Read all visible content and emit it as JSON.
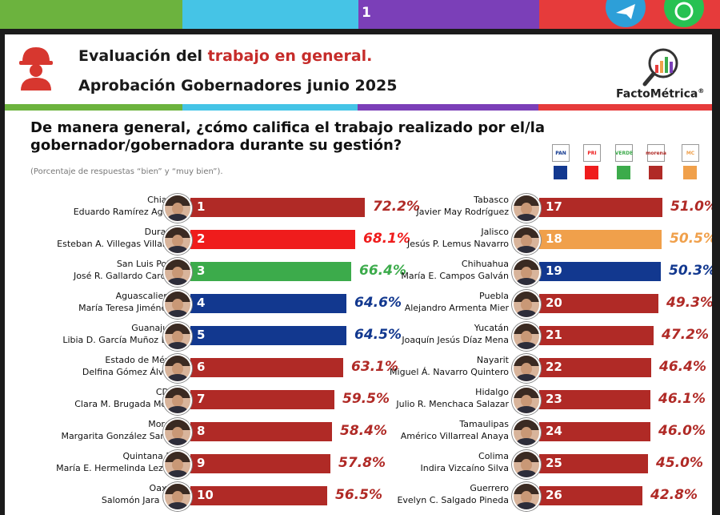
{
  "page_number": "1",
  "header": {
    "title_prefix": "Evaluación del ",
    "title_highlight": "trabajo en general.",
    "subtitle": "Aprobación Gobernadores junio 2025",
    "brand": "FactoMétrica",
    "brand_mark": "®"
  },
  "question": "De manera general, ¿cómo califica el trabajo realizado por el/la gobernador/gobernadora durante su gestión?",
  "note": "(Porcentaje de respuestas “bien” y “muy bien”).",
  "colors": {
    "pan": "#12388f",
    "pri": "#ef1c1c",
    "verde": "#3cab4b",
    "morena": "#b02a26",
    "mc": "#f0a04b"
  },
  "parties": [
    {
      "icon": "pan-logo-icon",
      "label": "PAN",
      "color": "#12388f"
    },
    {
      "icon": "pri-logo-icon",
      "label": "PRI",
      "color": "#ef1c1c"
    },
    {
      "icon": "verde-logo-icon",
      "label": "VERDE",
      "color": "#3cab4b"
    },
    {
      "icon": "morena-logo-icon",
      "label": "morena",
      "color": "#b02a26"
    },
    {
      "icon": "mc-logo-icon",
      "label": "MC",
      "color": "#f0a04b"
    }
  ],
  "chart_data": {
    "type": "bar",
    "unit": "%",
    "xlim": [
      0,
      100
    ],
    "series": [
      {
        "rank": "1",
        "state": "Chiapas",
        "governor": "Eduardo Ramírez Aguilar",
        "value": 72.2,
        "label": "72.2%",
        "party": "morena"
      },
      {
        "rank": "2",
        "state": "Durango",
        "governor": "Esteban A. Villegas Villarreal",
        "value": 68.1,
        "label": "68.1%",
        "party": "pri"
      },
      {
        "rank": "3",
        "state": "San Luis Potosí",
        "governor": "José R. Gallardo Cardona",
        "value": 66.4,
        "label": "66.4%",
        "party": "verde"
      },
      {
        "rank": "4",
        "state": "Aguascalientes",
        "governor": "María Teresa Jiménez E.",
        "value": 64.6,
        "label": "64.6%",
        "party": "pan"
      },
      {
        "rank": "5",
        "state": "Guanajuato",
        "governor": "Libia D. García Muñoz Ledo",
        "value": 64.5,
        "label": "64.5%",
        "party": "pan"
      },
      {
        "rank": "6",
        "state": "Estado de México",
        "governor": "Delfina Gómez Álvarez",
        "value": 63.1,
        "label": "63.1%",
        "party": "morena"
      },
      {
        "rank": "7",
        "state": "CDMX",
        "governor": "Clara M. Brugada Molina",
        "value": 59.5,
        "label": "59.5%",
        "party": "morena"
      },
      {
        "rank": "8",
        "state": "Morelos",
        "governor": "Margarita González Saravia",
        "value": 58.4,
        "label": "58.4%",
        "party": "morena"
      },
      {
        "rank": "9",
        "state": "Quintana Roo",
        "governor": "María E. Hermelinda Lezama",
        "value": 57.8,
        "label": "57.8%",
        "party": "morena"
      },
      {
        "rank": "10",
        "state": "Oaxaca",
        "governor": "Salomón Jara Cruz",
        "value": 56.5,
        "label": "56.5%",
        "party": "morena"
      },
      {
        "rank": "17",
        "state": "Tabasco",
        "governor": "Javier May Rodríguez",
        "value": 51.0,
        "label": "51.0%",
        "party": "morena"
      },
      {
        "rank": "18",
        "state": "Jalisco",
        "governor": "Jesús P. Lemus Navarro",
        "value": 50.5,
        "label": "50.5%",
        "party": "mc"
      },
      {
        "rank": "19",
        "state": "Chihuahua",
        "governor": "María E. Campos Galván",
        "value": 50.3,
        "label": "50.3%",
        "party": "pan"
      },
      {
        "rank": "20",
        "state": "Puebla",
        "governor": "Alejandro Armenta Mier",
        "value": 49.3,
        "label": "49.3%",
        "party": "morena"
      },
      {
        "rank": "21",
        "state": "Yucatán",
        "governor": "Joaquín Jesús Díaz Mena",
        "value": 47.2,
        "label": "47.2%",
        "party": "morena"
      },
      {
        "rank": "22",
        "state": "Nayarit",
        "governor": "Miguel Á. Navarro Quintero",
        "value": 46.4,
        "label": "46.4%",
        "party": "morena"
      },
      {
        "rank": "23",
        "state": "Hidalgo",
        "governor": "Julio R. Menchaca Salazar",
        "value": 46.1,
        "label": "46.1%",
        "party": "morena"
      },
      {
        "rank": "24",
        "state": "Tamaulipas",
        "governor": "Américo Villarreal Anaya",
        "value": 46.0,
        "label": "46.0%",
        "party": "morena"
      },
      {
        "rank": "25",
        "state": "Colima",
        "governor": "Indira Vizcaíno Silva",
        "value": 45.0,
        "label": "45.0%",
        "party": "morena"
      },
      {
        "rank": "26",
        "state": "Guerrero",
        "governor": "Evelyn C. Salgado Pineda",
        "value": 42.8,
        "label": "42.8%",
        "party": "morena"
      }
    ]
  }
}
